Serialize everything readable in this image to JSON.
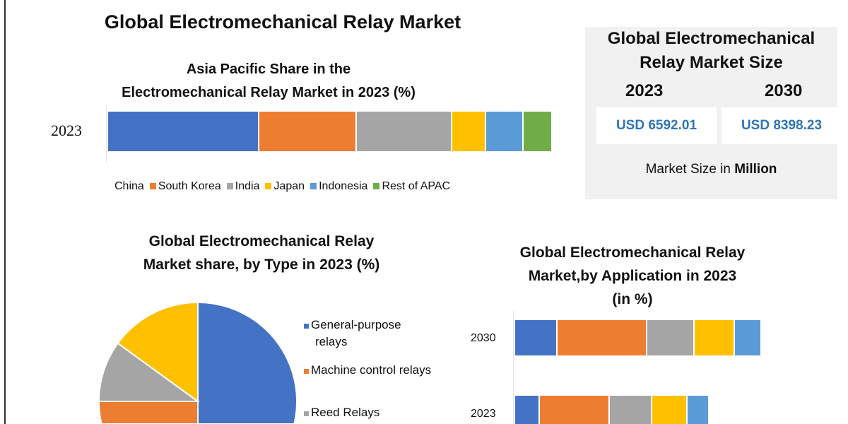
{
  "main_title": "Global Electromechanical Relay Market",
  "size_box": {
    "heading_line1": "Global Electromechanical",
    "heading_line2": "Relay Market Size",
    "year1": "2023",
    "year2": "2030",
    "value1": "USD 6592.01",
    "value2": "USD 8398.23",
    "note_prefix": "Market Size in ",
    "note_unit": "Million"
  },
  "chart_data": [
    {
      "type": "bar",
      "orientation": "horizontal-stacked",
      "title_line1": "Asia Pacific Share in the",
      "title_line2": "Electromechanical Relay Market in 2023 (%)",
      "categories": [
        "2023"
      ],
      "xlim": [
        0,
        100
      ],
      "legend_placement": "bottom",
      "series": [
        {
          "name": "China",
          "values": [
            34
          ],
          "color": "#4472c4"
        },
        {
          "name": "South Korea",
          "values": [
            22
          ],
          "color": "#ed7d31"
        },
        {
          "name": "India",
          "values": [
            21.5
          ],
          "color": "#a5a5a5"
        },
        {
          "name": "Japan",
          "values": [
            7.5
          ],
          "color": "#ffc000"
        },
        {
          "name": "Indonesia",
          "values": [
            8.5
          ],
          "color": "#5b9bd5"
        },
        {
          "name": "Rest of APAC",
          "values": [
            6.5
          ],
          "color": "#70ad47"
        }
      ]
    },
    {
      "type": "pie",
      "title_line1": "Global Electromechanical Relay",
      "title_line2": "Market share, by Type in 2023  (%)",
      "legend_placement": "right",
      "slices": [
        {
          "name": "General-purpose relays",
          "legend_line1": "General-purpose",
          "legend_line2": "relays",
          "value": 50,
          "color": "#4472c4"
        },
        {
          "name": "Machine control relays",
          "value": 25,
          "color": "#ed7d31"
        },
        {
          "name": "Reed Relays",
          "value": 10,
          "color": "#a5a5a5"
        },
        {
          "name": "",
          "value": 15,
          "color": "#ffc000"
        }
      ]
    },
    {
      "type": "bar",
      "orientation": "horizontal-stacked",
      "title_line1": "Global Electromechanical Relay",
      "title_line2": "Market,by Application in 2023",
      "title_line3": "(in %)",
      "categories": [
        "2030",
        "2023"
      ],
      "series": [
        {
          "values": [
            17,
            10
          ],
          "color": "#4472c4"
        },
        {
          "values": [
            36,
            28
          ],
          "color": "#ed7d31"
        },
        {
          "values": [
            19,
            17
          ],
          "color": "#a5a5a5"
        },
        {
          "values": [
            16,
            14
          ],
          "color": "#ffc000"
        },
        {
          "values": [
            11,
            9
          ],
          "color": "#5b9bd5"
        }
      ]
    }
  ]
}
